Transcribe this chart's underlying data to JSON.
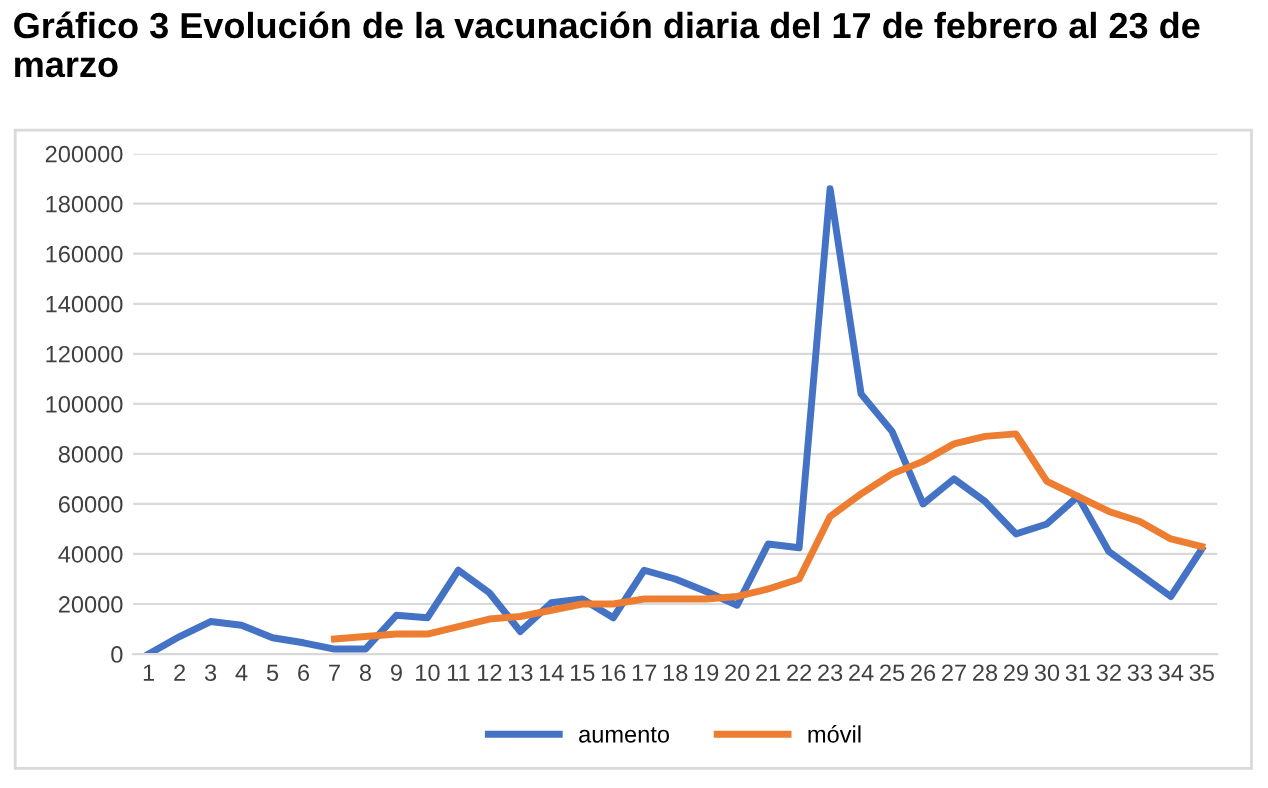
{
  "chart_data": {
    "type": "line",
    "title": "Gráfico 3 Evolución de la vacunación diaria del 17 de febrero al 23 de marzo",
    "categories": [
      "1",
      "2",
      "3",
      "4",
      "5",
      "6",
      "7",
      "8",
      "9",
      "10",
      "11",
      "12",
      "13",
      "14",
      "15",
      "16",
      "17",
      "18",
      "19",
      "20",
      "21",
      "22",
      "23",
      "24",
      "25",
      "26",
      "27",
      "28",
      "29",
      "30",
      "31",
      "32",
      "33",
      "34",
      "35"
    ],
    "series": [
      {
        "name": "aumento",
        "color": "#4472c4",
        "values": [
          0,
          7000,
          13000,
          11500,
          6500,
          4500,
          2000,
          2000,
          15500,
          14500,
          33500,
          24500,
          9000,
          20500,
          22000,
          14500,
          33500,
          30000,
          25000,
          19500,
          44000,
          42500,
          186000,
          104000,
          89000,
          60000,
          70000,
          61000,
          48000,
          52000,
          63000,
          41000,
          32000,
          23000,
          42000
        ]
      },
      {
        "name": "móvil",
        "color": "#ed7d31",
        "values": [
          null,
          null,
          null,
          null,
          null,
          null,
          6000,
          7000,
          8000,
          8000,
          11000,
          14000,
          15000,
          17500,
          20000,
          20000,
          22000,
          22000,
          22000,
          23000,
          26000,
          30000,
          55000,
          64000,
          72000,
          77000,
          84000,
          87000,
          88000,
          69000,
          63000,
          57000,
          53000,
          46000,
          43000
        ]
      }
    ],
    "ylim": [
      0,
      200000
    ],
    "yticks": [
      0,
      20000,
      40000,
      60000,
      80000,
      100000,
      120000,
      140000,
      160000,
      180000,
      200000
    ],
    "grid": "y",
    "legend": "bottom",
    "marker": "none",
    "line_style": "solid"
  }
}
